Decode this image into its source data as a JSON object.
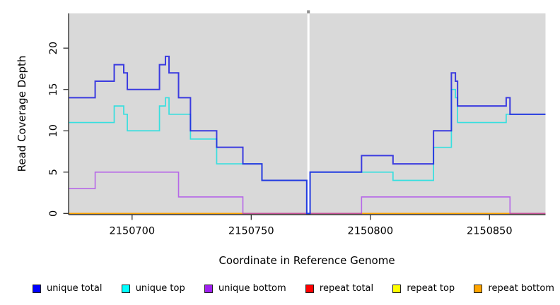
{
  "figure": {
    "kind": "R step plot of read coverage by genome coordinate"
  },
  "chart_data": {
    "type": "line",
    "subtype": "step",
    "title": "",
    "xlabel": "Coordinate in Reference Genome",
    "ylabel": "Read Coverage Depth",
    "xlim": [
      2150673.5,
      2150873.5
    ],
    "ylim": [
      -0.1,
      24.2
    ],
    "x_ticks": [
      2150700,
      2150750,
      2150800,
      2150850
    ],
    "y_ticks": [
      0,
      5,
      10,
      15,
      20
    ],
    "grid": false,
    "plot_bg": "#d9d9d9",
    "axis_color": "#333333",
    "gap_band": {
      "x_start": 2150773.55,
      "x_end": 2150774.45,
      "color": "#ffffff",
      "top_notch_color": "#909090"
    },
    "legend_position": "bottom",
    "legend": [
      {
        "label": "unique total",
        "color": "#0000ff"
      },
      {
        "label": "unique top",
        "color": "#00ffff"
      },
      {
        "label": "unique bottom",
        "color": "#a020f0"
      },
      {
        "label": "repeat total",
        "color": "#ff0000"
      },
      {
        "label": "repeat top",
        "color": "#ffff00"
      },
      {
        "label": "repeat bottom",
        "color": "#ffa500"
      }
    ],
    "series": [
      {
        "name": "repeat total",
        "color": "#dd0000",
        "opacity": 0.9,
        "width": 1.3,
        "steps": [
          [
            2150673.5,
            0
          ]
        ]
      },
      {
        "name": "repeat top",
        "color": "#f5f500",
        "opacity": 0.9,
        "width": 1.3,
        "steps": [
          [
            2150673.5,
            0
          ]
        ]
      },
      {
        "name": "repeat bottom",
        "color": "#ff9d00",
        "opacity": 0.95,
        "width": 1.6,
        "steps": [
          [
            2150673.5,
            0
          ]
        ]
      },
      {
        "name": "unique bottom",
        "color": "#a020f0",
        "opacity": 0.62,
        "width": 1.6,
        "steps": [
          [
            2150673.5,
            3
          ],
          [
            2150684.5,
            5
          ],
          [
            2150719.5,
            2
          ],
          [
            2150746.5,
            0
          ],
          [
            2150796.3,
            2
          ],
          [
            2150858.6,
            0
          ]
        ]
      },
      {
        "name": "unique top",
        "color": "#00e0e0",
        "opacity": 0.75,
        "width": 1.7,
        "steps": [
          [
            2150673.5,
            11
          ],
          [
            2150692.5,
            13
          ],
          [
            2150696.5,
            12
          ],
          [
            2150698,
            10
          ],
          [
            2150711.5,
            13
          ],
          [
            2150714,
            14
          ],
          [
            2150715.5,
            12
          ],
          [
            2150724.5,
            9
          ],
          [
            2150735.5,
            6
          ],
          [
            2150754.5,
            4
          ],
          [
            2150773.3,
            0
          ],
          [
            2150774.7,
            5
          ],
          [
            2150809.5,
            4
          ],
          [
            2150826.5,
            8
          ],
          [
            2150834,
            15
          ],
          [
            2150835.7,
            14
          ],
          [
            2150836.6,
            11
          ],
          [
            2150857,
            12
          ]
        ]
      },
      {
        "name": "unique total",
        "color": "#1f1fe0",
        "opacity": 0.85,
        "width": 2,
        "steps": [
          [
            2150673.5,
            14
          ],
          [
            2150684.5,
            16
          ],
          [
            2150692.5,
            18
          ],
          [
            2150696.5,
            17
          ],
          [
            2150698,
            15
          ],
          [
            2150711.5,
            18
          ],
          [
            2150714,
            19
          ],
          [
            2150715.5,
            17
          ],
          [
            2150719.5,
            14
          ],
          [
            2150724.5,
            10
          ],
          [
            2150735.5,
            8
          ],
          [
            2150746.5,
            6
          ],
          [
            2150754.5,
            4
          ],
          [
            2150773.3,
            0
          ],
          [
            2150774.7,
            5
          ],
          [
            2150796.3,
            7
          ],
          [
            2150809.5,
            6
          ],
          [
            2150826.5,
            10
          ],
          [
            2150834,
            17
          ],
          [
            2150835.7,
            16
          ],
          [
            2150836.6,
            13
          ],
          [
            2150857,
            14
          ],
          [
            2150858.6,
            12
          ]
        ]
      }
    ]
  }
}
